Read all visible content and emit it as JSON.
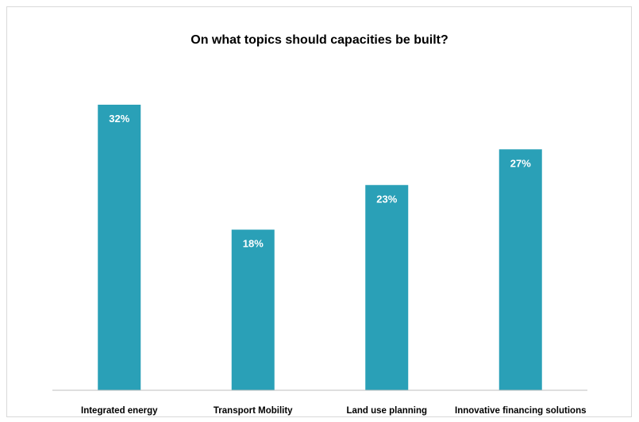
{
  "chart_data": {
    "type": "bar",
    "title": "On what topics should capacities be built?",
    "xlabel": "",
    "ylabel": "",
    "categories": [
      "Integrated energy",
      "Transport Mobility",
      "Land use planning",
      "Innovative financing solutions"
    ],
    "values": [
      32,
      18,
      23,
      27
    ],
    "data_labels": [
      "32%",
      "18%",
      "23%",
      "27%"
    ],
    "unit": "%",
    "ylim": [
      0,
      35
    ],
    "grid": false,
    "legend": "none",
    "colors": {
      "bar": "#2aa0b7",
      "data_label": "#ffffff",
      "axis": "#bfbfbf",
      "text": "#000000"
    }
  }
}
